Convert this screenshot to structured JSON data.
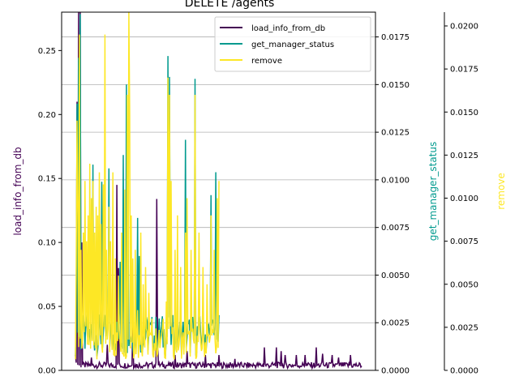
{
  "chart_data": {
    "type": "line",
    "title": "DELETE /agents",
    "grid": true,
    "legend_position": "top-right",
    "axes": [
      {
        "id": "y1",
        "label": "load_info_from_db",
        "color": "#440154",
        "ylim": [
          0,
          0.28
        ],
        "ticks": [
          "0.00",
          "0.05",
          "0.10",
          "0.15",
          "0.20",
          "0.25"
        ],
        "tick_values": [
          0,
          0.05,
          0.1,
          0.15,
          0.2,
          0.25
        ]
      },
      {
        "id": "y2",
        "label": "get_manager_status",
        "color": "#009a8e",
        "ylim": [
          0,
          0.0188
        ],
        "ticks": [
          "0.0000",
          "0.0025",
          "0.0050",
          "0.0075",
          "0.0100",
          "0.0125",
          "0.0150",
          "0.0175"
        ],
        "tick_values": [
          0,
          0.0025,
          0.005,
          0.0075,
          0.01,
          0.0125,
          0.015,
          0.0175
        ]
      },
      {
        "id": "y3",
        "label": "remove",
        "color": "#fde725",
        "ylim": [
          0,
          0.0208
        ],
        "ticks": [
          "0.0000",
          "0.0025",
          "0.0050",
          "0.0075",
          "0.0100",
          "0.0125",
          "0.0150",
          "0.0175",
          "0.0200"
        ],
        "tick_values": [
          0,
          0.0025,
          0.005,
          0.0075,
          0.01,
          0.0125,
          0.015,
          0.0175,
          0.02
        ]
      }
    ],
    "series": [
      {
        "name": "load_info_from_db",
        "axis": "y1",
        "color": "#440154",
        "n": 360,
        "baseline": 0.004,
        "spikes": [
          [
            0,
            0.012
          ],
          [
            2,
            0.21
          ],
          [
            4,
            0.28
          ],
          [
            6,
            0.28
          ],
          [
            8,
            0.1
          ],
          [
            20,
            0.01
          ],
          [
            40,
            0.02
          ],
          [
            52,
            0.145
          ],
          [
            54,
            0.08
          ],
          [
            72,
            0.04
          ],
          [
            102,
            0.134
          ],
          [
            103,
            0.026
          ],
          [
            125,
            0.012
          ],
          [
            140,
            0.015
          ],
          [
            163,
            0.012
          ],
          [
            180,
            0.012
          ],
          [
            200,
            0.009
          ],
          [
            237,
            0.018
          ],
          [
            252,
            0.018
          ],
          [
            258,
            0.015
          ],
          [
            263,
            0.012
          ],
          [
            277,
            0.012
          ],
          [
            288,
            0.012
          ],
          [
            302,
            0.018
          ],
          [
            310,
            0.013
          ],
          [
            322,
            0.012
          ],
          [
            330,
            0.01
          ],
          [
            345,
            0.012
          ]
        ]
      },
      {
        "name": "get_manager_status",
        "axis": "y2",
        "color": "#009a8e",
        "n": 181,
        "baseline": 0.00185,
        "spikes": [
          [
            2,
            0.014
          ],
          [
            4,
            0.0164
          ],
          [
            6,
            0.0187
          ],
          [
            22,
            0.0108
          ],
          [
            33,
            0.0099
          ],
          [
            42,
            0.0106
          ],
          [
            56,
            0.0057
          ],
          [
            60,
            0.0113
          ],
          [
            64,
            0.015
          ],
          [
            66,
            0.008
          ],
          [
            78,
            0.008
          ],
          [
            80,
            0.006
          ],
          [
            116,
            0.0165
          ],
          [
            118,
            0.0154
          ],
          [
            138,
            0.0121
          ],
          [
            150,
            0.0153
          ],
          [
            170,
            0.0092
          ],
          [
            176,
            0.0104
          ]
        ]
      },
      {
        "name": "remove",
        "axis": "y3",
        "color": "#fde725",
        "n": 181,
        "baseline": 0.0016,
        "spikes": [
          [
            1,
            0.006
          ],
          [
            2,
            0.0145
          ],
          [
            3,
            0.009
          ],
          [
            5,
            0.0195
          ],
          [
            7,
            0.007
          ],
          [
            10,
            0.008
          ],
          [
            12,
            0.011
          ],
          [
            14,
            0.0075
          ],
          [
            16,
            0.009
          ],
          [
            18,
            0.012
          ],
          [
            20,
            0.01
          ],
          [
            22,
            0.011
          ],
          [
            24,
            0.008
          ],
          [
            26,
            0.0095
          ],
          [
            28,
            0.009
          ],
          [
            30,
            0.0115
          ],
          [
            32,
            0.0085
          ],
          [
            35,
            0.0108
          ],
          [
            37,
            0.0195
          ],
          [
            39,
            0.007
          ],
          [
            42,
            0.0095
          ],
          [
            44,
            0.0075
          ],
          [
            47,
            0.0115
          ],
          [
            50,
            0.0065
          ],
          [
            54,
            0.0055
          ],
          [
            58,
            0.008
          ],
          [
            62,
            0.0105
          ],
          [
            65,
            0.016
          ],
          [
            67,
            0.021
          ],
          [
            68,
            0.015
          ],
          [
            70,
            0.009
          ],
          [
            72,
            0.0065
          ],
          [
            75,
            0.007
          ],
          [
            78,
            0.0035
          ],
          [
            82,
            0.008
          ],
          [
            85,
            0.005
          ],
          [
            88,
            0.006
          ],
          [
            92,
            0.0045
          ],
          [
            96,
            0.003
          ],
          [
            110,
            0.003
          ],
          [
            114,
            0.004
          ],
          [
            116,
            0.017
          ],
          [
            118,
            0.016
          ],
          [
            120,
            0.011
          ],
          [
            125,
            0.007
          ],
          [
            128,
            0.009
          ],
          [
            132,
            0.006
          ],
          [
            138,
            0.008
          ],
          [
            140,
            0.01
          ],
          [
            145,
            0.007
          ],
          [
            150,
            0.016
          ],
          [
            155,
            0.008
          ],
          [
            160,
            0.006
          ],
          [
            165,
            0.005
          ],
          [
            170,
            0.009
          ],
          [
            174,
            0.007
          ],
          [
            178,
            0.01
          ],
          [
            180,
            0.011
          ]
        ]
      }
    ]
  }
}
